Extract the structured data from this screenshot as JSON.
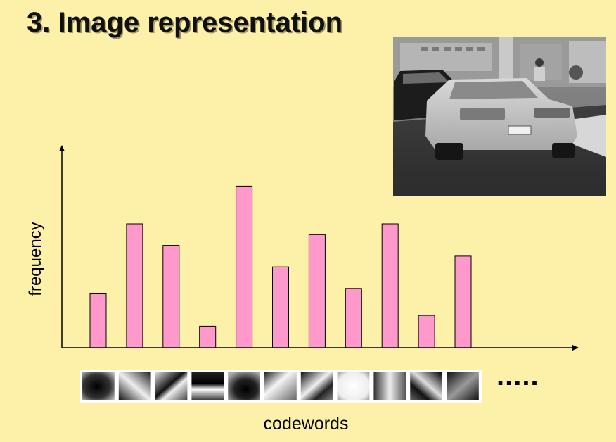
{
  "slide": {
    "title": "3. Image representation",
    "ellipsis": "....."
  },
  "photo": {
    "icon": "car-photo-icon",
    "tint": "#5a5a5a"
  },
  "colors": {
    "background": "#fdf0a8",
    "bar_fill": "#ff99cc",
    "bar_stroke": "#000000"
  },
  "codewords": {
    "count": 11,
    "patterns": [
      "dark-blob",
      "diagonal-split",
      "diagonal-stripe",
      "horizontal-bar",
      "dark-center",
      "light-corner",
      "diagonal-band",
      "bright-center",
      "bright-band",
      "diagonal-edge",
      "dark-diagonal"
    ]
  },
  "chart_data": {
    "type": "bar",
    "title": "",
    "xlabel": "codewords",
    "ylabel": "frequency",
    "categories": [
      "",
      "",
      "",
      "",
      "",
      "",
      "",
      "",
      "",
      "",
      ""
    ],
    "values": [
      2.0,
      4.6,
      3.8,
      0.8,
      6.0,
      3.0,
      4.2,
      2.2,
      4.6,
      1.2,
      3.4
    ],
    "ylim": [
      0,
      7.5
    ],
    "grid": false,
    "legend": "none"
  }
}
